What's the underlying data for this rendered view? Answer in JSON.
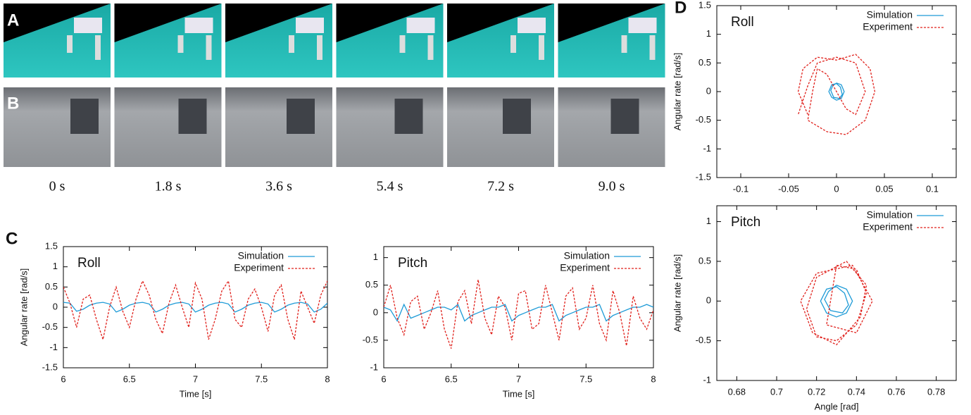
{
  "panel_labels": [
    "A",
    "B",
    "C",
    "D"
  ],
  "frame_times": [
    "0 s",
    "1.8 s",
    "3.6 s",
    "5.4 s",
    "7.2 s",
    "9.0 s"
  ],
  "chart_data": [
    {
      "type": "line",
      "title": "Roll",
      "ylabel": "Angular rate [rad/s]",
      "xlabel": "Time [s]",
      "x": [
        6,
        6.05,
        6.1,
        6.15,
        6.2,
        6.25,
        6.3,
        6.35,
        6.4,
        6.45,
        6.5,
        6.55,
        6.6,
        6.65,
        6.7,
        6.75,
        6.8,
        6.85,
        6.9,
        6.95,
        7,
        7.05,
        7.1,
        7.15,
        7.2,
        7.25,
        7.3,
        7.35,
        7.4,
        7.45,
        7.5,
        7.55,
        7.6,
        7.65,
        7.7,
        7.75,
        7.8,
        7.85,
        7.9,
        7.95,
        8
      ],
      "series": [
        {
          "name": "Simulation",
          "color": "#1e9bd7",
          "style": "solid",
          "values": [
            0.12,
            0.1,
            -0.1,
            -0.05,
            0.05,
            0.1,
            0.12,
            0.08,
            -0.12,
            -0.05,
            0.05,
            0.1,
            0.12,
            0.08,
            -0.12,
            -0.05,
            0.05,
            0.1,
            0.12,
            0.08,
            -0.12,
            -0.05,
            0.05,
            0.1,
            0.12,
            0.08,
            -0.12,
            -0.05,
            0.05,
            0.1,
            0.12,
            0.08,
            -0.12,
            -0.05,
            0.05,
            0.1,
            0.12,
            0.08,
            -0.12,
            -0.05,
            0.1
          ]
        },
        {
          "name": "Experiment",
          "color": "#e0201b",
          "style": "dashed",
          "values": [
            0.5,
            0.1,
            -0.5,
            0.2,
            0.3,
            -0.3,
            -0.8,
            0.0,
            0.5,
            -0.1,
            -0.5,
            0.2,
            0.65,
            0.3,
            -0.3,
            -0.65,
            0.1,
            0.55,
            0.0,
            -0.5,
            0.6,
            0.2,
            -0.8,
            -0.3,
            0.4,
            0.65,
            -0.3,
            -0.5,
            0.2,
            0.45,
            0.0,
            -0.6,
            0.3,
            0.55,
            -0.3,
            -0.8,
            0.4,
            0.0,
            -0.4,
            0.3,
            0.65
          ]
        }
      ],
      "xlim": [
        6,
        8
      ],
      "xticks": [
        6,
        6.5,
        7,
        7.5,
        8
      ],
      "ylim": [
        -1.5,
        1.5
      ],
      "yticks": [
        -1.5,
        -1,
        -0.5,
        0,
        0.5,
        1,
        1.5
      ],
      "legend": "upper right"
    },
    {
      "type": "line",
      "title": "Pitch",
      "xlabel": "Time [s]",
      "x": [
        6,
        6.05,
        6.1,
        6.15,
        6.2,
        6.25,
        6.3,
        6.35,
        6.4,
        6.45,
        6.5,
        6.55,
        6.6,
        6.65,
        6.7,
        6.75,
        6.8,
        6.85,
        6.9,
        6.95,
        7,
        7.05,
        7.1,
        7.15,
        7.2,
        7.25,
        7.3,
        7.35,
        7.4,
        7.45,
        7.5,
        7.55,
        7.6,
        7.65,
        7.7,
        7.75,
        7.8,
        7.85,
        7.9,
        7.95,
        8
      ],
      "series": [
        {
          "name": "Simulation",
          "color": "#1e9bd7",
          "style": "solid",
          "values": [
            0.1,
            0.05,
            -0.15,
            0.15,
            -0.1,
            -0.05,
            0.0,
            0.05,
            0.1,
            0.1,
            0.05,
            0.15,
            -0.15,
            -0.05,
            0.0,
            0.05,
            0.1,
            0.1,
            0.15,
            -0.15,
            -0.05,
            0.0,
            0.05,
            0.1,
            0.1,
            0.15,
            -0.15,
            -0.05,
            0.0,
            0.05,
            0.1,
            0.1,
            0.15,
            -0.15,
            -0.05,
            0.0,
            0.05,
            0.1,
            0.1,
            0.15,
            0.1
          ]
        },
        {
          "name": "Experiment",
          "color": "#e0201b",
          "style": "dashed",
          "values": [
            0.1,
            0.5,
            -0.1,
            -0.4,
            0.2,
            0.3,
            -0.3,
            0.0,
            0.4,
            -0.3,
            -0.65,
            0.2,
            0.4,
            -0.2,
            0.6,
            -0.1,
            -0.4,
            0.3,
            0.1,
            -0.5,
            0.35,
            0.4,
            -0.3,
            -0.2,
            0.5,
            0.0,
            -0.5,
            0.3,
            0.45,
            -0.3,
            -0.1,
            0.5,
            -0.2,
            -0.5,
            0.4,
            0.0,
            -0.6,
            0.3,
            -0.1,
            -0.3,
            0.05
          ]
        }
      ],
      "xlim": [
        6,
        8
      ],
      "xticks": [
        6,
        6.5,
        7,
        7.5,
        8
      ],
      "ylim": [
        -1,
        1.2
      ],
      "yticks": [
        -1,
        -0.5,
        0,
        0.5,
        1
      ],
      "legend": "upper right"
    },
    {
      "type": "line",
      "title": "Roll",
      "ylabel": "Angular rate [rad/s]",
      "series": [
        {
          "name": "Simulation",
          "color": "#1e9bd7",
          "style": "solid",
          "x": [
            0,
            0.005,
            0.008,
            0.005,
            0,
            -0.005,
            -0.008,
            -0.005,
            0,
            0.004,
            0.006,
            0.003,
            -0.003,
            -0.006,
            -0.004,
            0
          ],
          "values": [
            0.15,
            0.12,
            0,
            -0.12,
            -0.15,
            -0.1,
            0,
            0.12,
            0.14,
            0.08,
            -0.05,
            -0.12,
            -0.1,
            0.02,
            0.1,
            0.15
          ]
        },
        {
          "name": "Experiment",
          "color": "#e0201b",
          "style": "dashed",
          "x": [
            -0.03,
            -0.04,
            -0.035,
            -0.02,
            0,
            0.02,
            0.035,
            0.04,
            0.03,
            0.01,
            -0.01,
            -0.03,
            -0.025,
            -0.02,
            -0.01,
            0,
            0.01,
            0.02,
            0.03,
            0.02,
            0,
            -0.02,
            -0.03,
            -0.04
          ],
          "values": [
            -0.4,
            0,
            0.4,
            0.6,
            0.55,
            0.65,
            0.4,
            0,
            -0.5,
            -0.75,
            -0.7,
            -0.5,
            0,
            0.4,
            0.3,
            0,
            -0.3,
            -0.4,
            0,
            0.5,
            0.6,
            0.5,
            0.1,
            -0.4
          ]
        }
      ],
      "xlim": [
        -0.125,
        0.125
      ],
      "xticks": [
        -0.1,
        -0.05,
        0,
        0.05,
        0.1
      ],
      "ylim": [
        -1.5,
        1.5
      ],
      "yticks": [
        -1.5,
        -1,
        -0.5,
        0,
        0.5,
        1,
        1.5
      ],
      "legend": "upper right"
    },
    {
      "type": "line",
      "title": "Pitch",
      "ylabel": "Angular rate [rad/s]",
      "xlabel": "Angle [rad]",
      "series": [
        {
          "name": "Simulation",
          "color": "#1e9bd7",
          "style": "solid",
          "x": [
            0.73,
            0.735,
            0.738,
            0.735,
            0.73,
            0.725,
            0.722,
            0.725,
            0.73,
            0.734,
            0.736,
            0.733,
            0.727,
            0.724,
            0.726,
            0.73
          ],
          "values": [
            0.2,
            0.15,
            0,
            -0.15,
            -0.2,
            -0.15,
            0,
            0.15,
            0.18,
            0.1,
            -0.05,
            -0.15,
            -0.12,
            0.02,
            0.12,
            0.2
          ]
        },
        {
          "name": "Experiment",
          "color": "#e0201b",
          "style": "dashed",
          "x": [
            0.73,
            0.74,
            0.745,
            0.74,
            0.73,
            0.72,
            0.715,
            0.72,
            0.735,
            0.745,
            0.742,
            0.73,
            0.718,
            0.712,
            0.72,
            0.738,
            0.748,
            0.74,
            0.725,
            0.73
          ],
          "values": [
            0.45,
            0.4,
            0.1,
            -0.3,
            -0.5,
            -0.45,
            -0.1,
            0.3,
            0.5,
            0.2,
            -0.2,
            -0.55,
            -0.4,
            0.0,
            0.35,
            0.45,
            0.0,
            -0.4,
            -0.3,
            0.45
          ]
        }
      ],
      "xlim": [
        0.67,
        0.79
      ],
      "xticks": [
        0.68,
        0.7,
        0.72,
        0.74,
        0.76,
        0.78
      ],
      "ylim": [
        -1,
        1.2
      ],
      "yticks": [
        -1,
        -0.5,
        0,
        0.5,
        1
      ],
      "legend": "upper right"
    }
  ]
}
